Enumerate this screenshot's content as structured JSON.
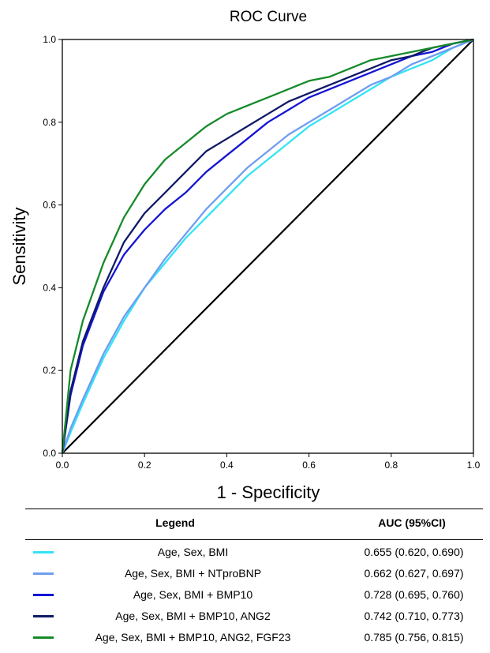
{
  "chart_data": {
    "type": "line",
    "title": "ROC Curve",
    "xlabel": "1 - Specificity",
    "ylabel": "Sensitivity",
    "xlim": [
      0,
      1
    ],
    "ylim": [
      0,
      1
    ],
    "xticks": [
      "0.0",
      "0.2",
      "0.4",
      "0.6",
      "0.8",
      "1.0"
    ],
    "yticks": [
      "0.0",
      "0.2",
      "0.4",
      "0.6",
      "0.8",
      "1.0"
    ],
    "grid": false,
    "reference_line": {
      "x": [
        0,
        1
      ],
      "y": [
        0,
        1
      ],
      "color": "#000000"
    },
    "series": [
      {
        "name": "Age, Sex, BMI",
        "color": "#33e3f5",
        "auc": "0.655 (0.620, 0.690)",
        "x": [
          0,
          0.02,
          0.05,
          0.1,
          0.15,
          0.2,
          0.25,
          0.3,
          0.35,
          0.4,
          0.45,
          0.5,
          0.55,
          0.6,
          0.65,
          0.7,
          0.75,
          0.8,
          0.85,
          0.9,
          0.95,
          1.0
        ],
        "y": [
          0,
          0.05,
          0.12,
          0.23,
          0.32,
          0.4,
          0.46,
          0.52,
          0.57,
          0.62,
          0.67,
          0.71,
          0.75,
          0.79,
          0.82,
          0.85,
          0.88,
          0.91,
          0.93,
          0.95,
          0.98,
          1.0
        ]
      },
      {
        "name": "Age, Sex, BMI + NTproBNP",
        "color": "#6f9ef0",
        "auc": "0.662 (0.627, 0.697)",
        "x": [
          0,
          0.02,
          0.05,
          0.1,
          0.15,
          0.2,
          0.25,
          0.3,
          0.35,
          0.4,
          0.45,
          0.5,
          0.55,
          0.6,
          0.65,
          0.7,
          0.75,
          0.8,
          0.85,
          0.9,
          0.95,
          1.0
        ],
        "y": [
          0,
          0.06,
          0.13,
          0.24,
          0.33,
          0.4,
          0.47,
          0.53,
          0.59,
          0.64,
          0.69,
          0.73,
          0.77,
          0.8,
          0.83,
          0.86,
          0.89,
          0.91,
          0.94,
          0.96,
          0.98,
          1.0
        ]
      },
      {
        "name": "Age, Sex, BMI + BMP10",
        "color": "#1414d4",
        "auc": "0.728 (0.695, 0.760)",
        "x": [
          0,
          0.02,
          0.05,
          0.1,
          0.15,
          0.2,
          0.25,
          0.3,
          0.35,
          0.4,
          0.45,
          0.5,
          0.55,
          0.6,
          0.65,
          0.7,
          0.75,
          0.8,
          0.85,
          0.9,
          0.95,
          1.0
        ],
        "y": [
          0,
          0.14,
          0.26,
          0.39,
          0.48,
          0.54,
          0.59,
          0.63,
          0.68,
          0.72,
          0.76,
          0.8,
          0.83,
          0.86,
          0.88,
          0.9,
          0.92,
          0.94,
          0.96,
          0.97,
          0.99,
          1.0
        ]
      },
      {
        "name": "Age, Sex, BMI + BMP10, ANG2",
        "color": "#101a66",
        "auc": "0.742 (0.710, 0.773)",
        "x": [
          0,
          0.02,
          0.05,
          0.1,
          0.15,
          0.2,
          0.25,
          0.3,
          0.35,
          0.4,
          0.45,
          0.5,
          0.55,
          0.6,
          0.65,
          0.7,
          0.75,
          0.8,
          0.85,
          0.9,
          0.95,
          1.0
        ],
        "y": [
          0,
          0.15,
          0.27,
          0.4,
          0.51,
          0.58,
          0.63,
          0.68,
          0.73,
          0.76,
          0.79,
          0.82,
          0.85,
          0.87,
          0.89,
          0.91,
          0.93,
          0.95,
          0.96,
          0.98,
          0.99,
          1.0
        ]
      },
      {
        "name": "Age, Sex, BMI + BMP10, ANG2, FGF23",
        "color": "#168a2a",
        "auc": "0.785 (0.756, 0.815)",
        "x": [
          0,
          0.02,
          0.05,
          0.1,
          0.15,
          0.2,
          0.25,
          0.3,
          0.35,
          0.4,
          0.45,
          0.5,
          0.55,
          0.6,
          0.65,
          0.7,
          0.75,
          0.8,
          0.85,
          0.9,
          0.95,
          1.0
        ],
        "y": [
          0,
          0.2,
          0.32,
          0.46,
          0.57,
          0.65,
          0.71,
          0.75,
          0.79,
          0.82,
          0.84,
          0.86,
          0.88,
          0.9,
          0.91,
          0.93,
          0.95,
          0.96,
          0.97,
          0.98,
          0.99,
          1.0
        ]
      }
    ]
  },
  "legend": {
    "header_legend": "Legend",
    "header_auc": "AUC (95%CI)"
  }
}
